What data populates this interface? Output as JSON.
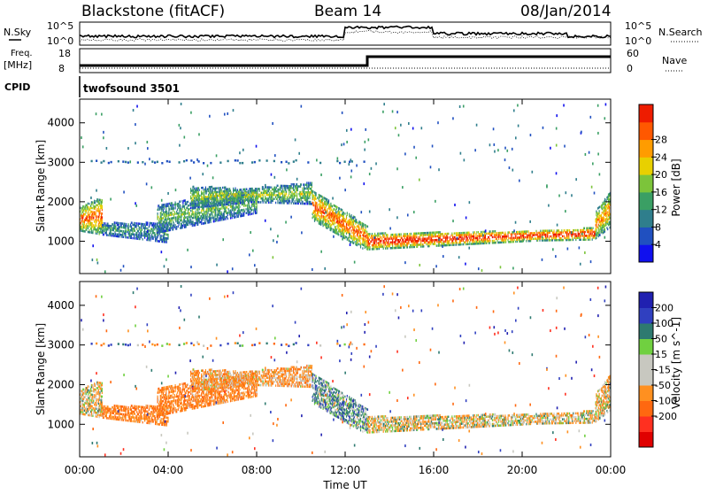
{
  "header": {
    "station": "Blackstone (fitACF)",
    "beam": "Beam 14",
    "date": "08/Jan/2014"
  },
  "status_panel": {
    "left_labels": {
      "nsky": "N.Sky",
      "freq": "Freq.",
      "freq_unit": "[MHz]",
      "cpid": "CPID"
    },
    "right_labels": {
      "nsearch": "N.Search",
      "nave": "Nave"
    },
    "noise_axis": {
      "top": "10^5",
      "bottom": "10^0"
    },
    "freq_axis": {
      "top": "18",
      "bottom": "8"
    },
    "nave_axis": {
      "top": "60",
      "bottom": "0"
    },
    "cpid_text": "twofsound 3501",
    "freq_step_hour": 13.0
  },
  "axes": {
    "x_ticks": [
      "00:00",
      "04:00",
      "08:00",
      "12:00",
      "16:00",
      "20:00",
      "00:00"
    ],
    "x_label": "Time UT",
    "y_label": "Slant Range [km]",
    "y_ticks": [
      "1000",
      "2000",
      "3000",
      "4000"
    ]
  },
  "power_scale": {
    "label": "Power [dB]",
    "ticks": [
      "4",
      "8",
      "12",
      "16",
      "20",
      "24",
      "28"
    ],
    "colors": [
      "#1010ee",
      "#2050c0",
      "#2f7e8c",
      "#3a9f64",
      "#7cc43a",
      "#e8d000",
      "#ff9c00",
      "#ff5800",
      "#ee1c00"
    ]
  },
  "velocity_scale": {
    "label": "Velocity [m s^-1]",
    "ticks": [
      "200",
      "100",
      "50",
      "15",
      "-15",
      "-50",
      "-100",
      "-200"
    ],
    "colors": [
      "#2020b0",
      "#3040c0",
      "#2e7a70",
      "#70d040",
      "#c8c8c0",
      "#c8c8c0",
      "#ff9020",
      "#ff6810",
      "#ff3020",
      "#e00000"
    ]
  },
  "chart_data": {
    "type": "heatmap",
    "title": "Blackstone (fitACF) Beam 14 08/Jan/2014",
    "xlabel": "Time UT",
    "ylabel": "Slant Range [km]",
    "xlim": [
      0,
      24
    ],
    "ylim": [
      180,
      4600
    ],
    "panels": [
      {
        "name": "Power [dB]",
        "scale": [
          0,
          30
        ]
      },
      {
        "name": "Velocity [m s^-1]",
        "scale": [
          -250,
          250
        ]
      }
    ],
    "echo_regions": [
      {
        "t": [
          0.0,
          1.0
        ],
        "range_start": [
          1400,
          1700
        ],
        "range_end": [
          1300,
          1950
        ],
        "width": 300,
        "power": 22,
        "velocity": -15
      },
      {
        "t": [
          1.0,
          4.0
        ],
        "range_start": [
          1300,
          1300
        ],
        "range_end": [
          1100,
          1300
        ],
        "width": 300,
        "power": 10,
        "velocity": -70
      },
      {
        "t": [
          3.5,
          8.0
        ],
        "range_start": [
          1400,
          1700
        ],
        "range_end": [
          1900,
          2100
        ],
        "width": 400,
        "power": 12,
        "velocity": -70
      },
      {
        "t": [
          5.0,
          10.5
        ],
        "range_start": [
          2000,
          2200
        ],
        "range_end": [
          2300,
          2100
        ],
        "width": 350,
        "power": 14,
        "velocity": -40
      },
      {
        "t": [
          10.5,
          13.0
        ],
        "range_start": [
          2100,
          1700
        ],
        "range_end": [
          1200,
          900
        ],
        "width": 350,
        "power": 22,
        "velocity": 40
      },
      {
        "t": [
          13.0,
          23.3
        ],
        "range_start": [
          900,
          1050
        ],
        "range_end": [
          1200,
          1150
        ],
        "width": 250,
        "power": 26,
        "velocity": -10
      },
      {
        "t": [
          23.3,
          24.0
        ],
        "range_start": [
          1200,
          1600
        ],
        "range_end": [
          1500,
          2100
        ],
        "width": 300,
        "power": 20,
        "velocity": -20
      }
    ]
  }
}
